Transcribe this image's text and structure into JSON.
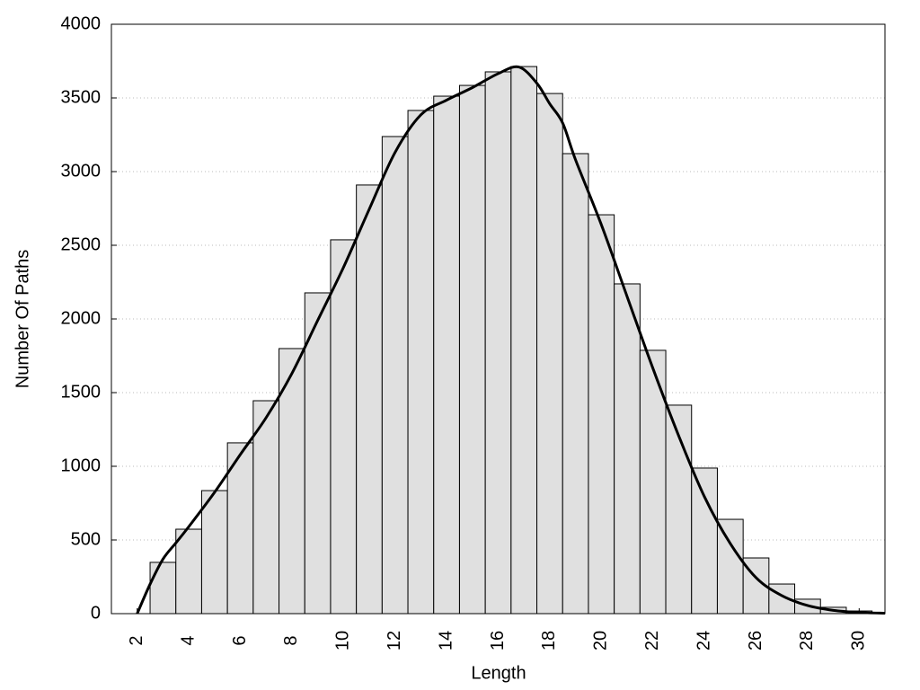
{
  "chart_data": {
    "type": "histogram",
    "x_label": "Length",
    "y_label": "Number Of Paths",
    "bins": [
      2.5,
      3.5,
      4.5,
      5.5,
      6.5,
      7.5,
      8.5,
      9.5,
      10.5,
      11.5,
      12.5,
      13.5,
      14.5,
      15.5,
      16.5,
      17.5,
      18.5,
      19.5,
      20.5,
      21.5,
      22.5,
      23.5,
      24.5,
      25.5,
      26.5,
      27.5,
      28.5,
      29.5,
      30.5
    ],
    "values": [
      348,
      573,
      835,
      1159,
      1445,
      1799,
      2177,
      2537,
      2909,
      3238,
      3415,
      3512,
      3585,
      3677,
      3713,
      3530,
      3122,
      2707,
      2238,
      1787,
      1415,
      988,
      640,
      378,
      201,
      98,
      43,
      18
    ],
    "color": "#e0e0e0",
    "line": {
      "color": "#000000",
      "x": [
        2,
        2.5,
        3,
        3.5,
        4,
        5,
        6,
        7,
        8,
        9,
        10,
        11,
        12,
        13,
        14,
        15,
        16,
        16.8,
        17.5,
        18,
        18.5,
        19,
        20,
        21,
        22,
        23,
        24,
        25,
        26,
        27,
        28,
        29,
        30,
        31
      ],
      "values": [
        0,
        200,
        370,
        480,
        590,
        823,
        1080,
        1330,
        1630,
        1990,
        2350,
        2745,
        3130,
        3385,
        3485,
        3570,
        3665,
        3710,
        3600,
        3460,
        3330,
        3080,
        2640,
        2152,
        1665,
        1207,
        793,
        476,
        244,
        122,
        55,
        22,
        8,
        3
      ]
    },
    "xlim": [
      1,
      31
    ],
    "ylim": [
      0,
      4000
    ],
    "xticks": [
      2,
      4,
      6,
      8,
      10,
      12,
      14,
      16,
      18,
      20,
      22,
      24,
      26,
      28,
      30
    ],
    "yticks": [
      0,
      500,
      1000,
      1500,
      2000,
      2500,
      3000,
      3500,
      4000
    ],
    "grid": true
  }
}
